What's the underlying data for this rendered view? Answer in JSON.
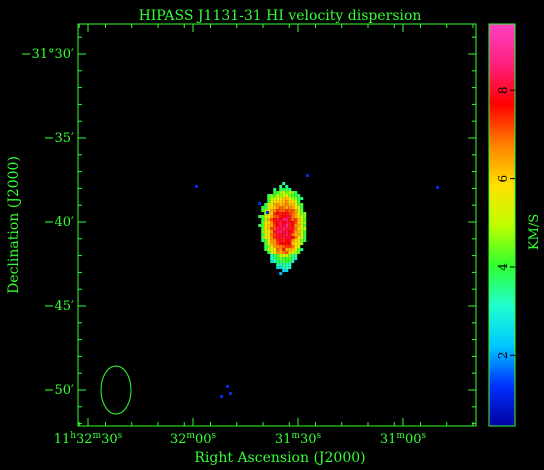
{
  "chart_data": {
    "type": "heatmap",
    "title": "HIPASS J1131-31   HI velocity dispersion",
    "xlabel": "Right Ascension (J2000)",
    "ylabel": "Declination (J2000)",
    "colorbar_label": "KM/S",
    "x_ticks": [
      {
        "h": "11",
        "m": "32",
        "s": "30",
        "ra_sec": 0
      },
      {
        "h": "",
        "m": "32",
        "s": "00",
        "ra_sec": 30
      },
      {
        "h": "",
        "m": "31",
        "s": "30",
        "ra_sec": 60
      },
      {
        "h": "",
        "m": "31",
        "s": "00",
        "ra_sec": 90
      }
    ],
    "y_ticks": [
      {
        "label": "−31°30′",
        "dec_min": -30
      },
      {
        "label": "−35′",
        "dec_min": -35
      },
      {
        "label": "−40′",
        "dec_min": -40
      },
      {
        "label": "−45′",
        "dec_min": -45
      },
      {
        "label": "−50′",
        "dec_min": -50
      }
    ],
    "colorbar_ticks": [
      2,
      4,
      6,
      8
    ],
    "colorbar_range": [
      0.4,
      9.5
    ],
    "colormap": [
      "#0000a0",
      "#0030ff",
      "#00c8ff",
      "#20ffd0",
      "#30ff30",
      "#c0ff00",
      "#ffe000",
      "#ff8000",
      "#ff0000",
      "#ff2080",
      "#ff40c0"
    ],
    "source": {
      "center_ra_sec": 55.5,
      "center_dec_min": -40.3,
      "peak_dispersion": 8.4,
      "edge_dispersion": 3.5
    },
    "beam": {
      "ra_sec": 8,
      "dec_min": -50
    }
  },
  "colors": {
    "axis": "#33ff33",
    "background": "#000000"
  }
}
